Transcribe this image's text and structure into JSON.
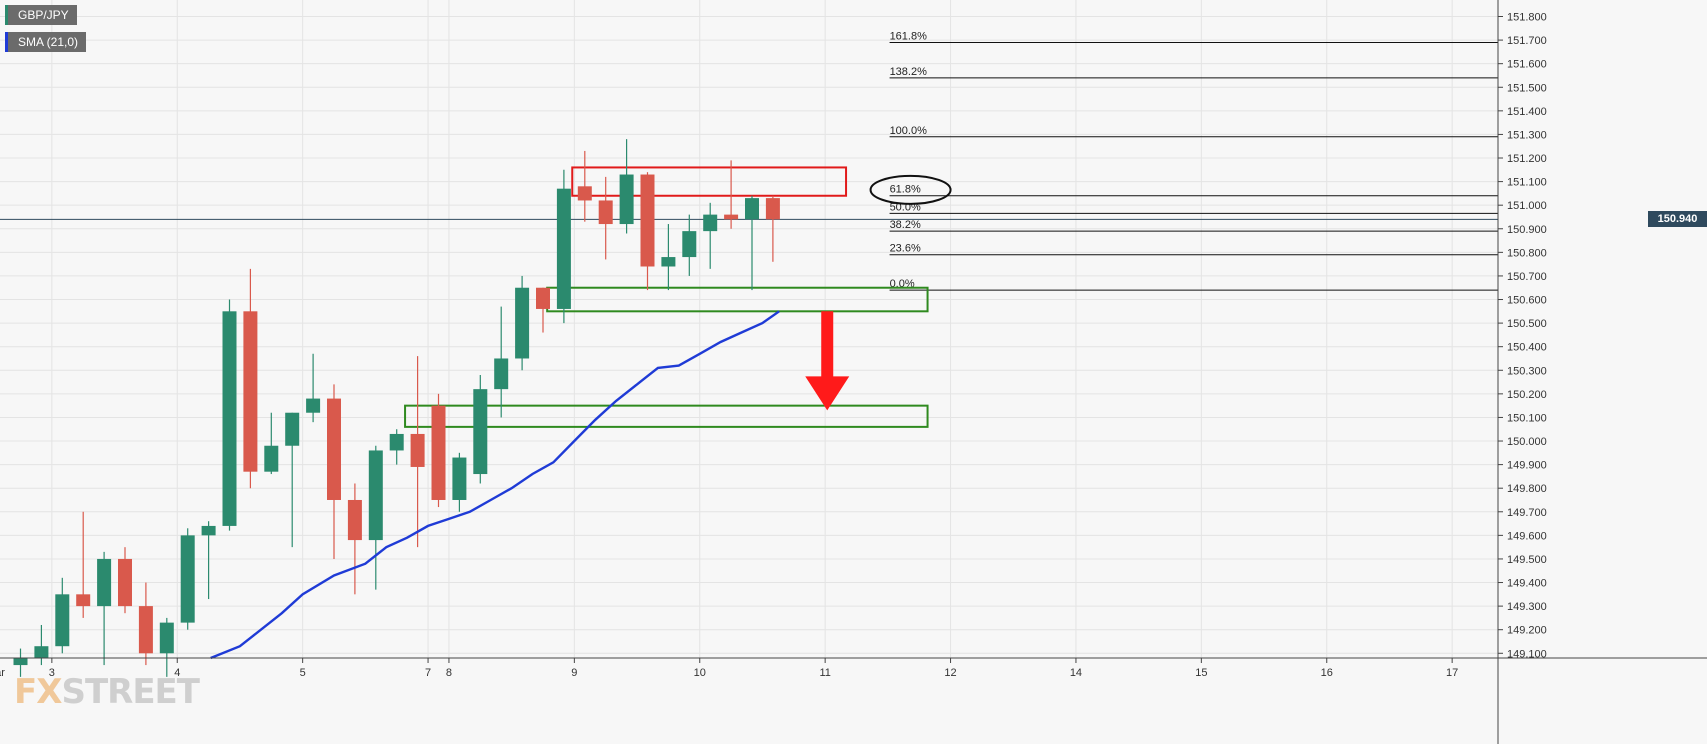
{
  "chart_data": {
    "type": "candlestick",
    "symbol": "GBP/JPY",
    "indicator": {
      "label": "SMA (21,0)",
      "color": "#1f3bd6"
    },
    "current_price": "150.940",
    "y_range": [
      149.08,
      151.87
    ],
    "y_ticks": [
      "151.800",
      "151.700",
      "151.600",
      "151.500",
      "151.400",
      "151.300",
      "151.200",
      "151.100",
      "151.000",
      "150.900",
      "150.800",
      "150.700",
      "150.600",
      "150.500",
      "150.400",
      "150.300",
      "150.200",
      "150.100",
      "150.000",
      "149.900",
      "149.800",
      "149.700",
      "149.600",
      "149.500",
      "149.400",
      "149.300",
      "149.200",
      "149.100"
    ],
    "x_labels": [
      {
        "label": "Mar",
        "bar": -1.2
      },
      {
        "label": "3",
        "bar": 1.5
      },
      {
        "label": "4",
        "bar": 7.5
      },
      {
        "label": "5",
        "bar": 13.5
      },
      {
        "label": "7",
        "bar": 19.5
      },
      {
        "label": "8",
        "bar": 20.5
      },
      {
        "label": "9",
        "bar": 26.5
      },
      {
        "label": "10",
        "bar": 32.5
      },
      {
        "label": "11",
        "bar": 38.5
      },
      {
        "label": "12",
        "bar": 44.5
      },
      {
        "label": "14",
        "bar": 50.5
      },
      {
        "label": "15",
        "bar": 56.5
      },
      {
        "label": "16",
        "bar": 62.5
      },
      {
        "label": "17",
        "bar": 68.5
      }
    ],
    "candles": [
      {
        "o": 149.05,
        "h": 149.12,
        "l": 149.0,
        "c": 149.08
      },
      {
        "o": 149.08,
        "h": 149.22,
        "l": 149.05,
        "c": 149.13
      },
      {
        "o": 149.13,
        "h": 149.42,
        "l": 149.1,
        "c": 149.35
      },
      {
        "o": 149.35,
        "h": 149.7,
        "l": 149.25,
        "c": 149.3
      },
      {
        "o": 149.3,
        "h": 149.53,
        "l": 149.05,
        "c": 149.5
      },
      {
        "o": 149.5,
        "h": 149.55,
        "l": 149.27,
        "c": 149.3
      },
      {
        "o": 149.3,
        "h": 149.4,
        "l": 149.05,
        "c": 149.1
      },
      {
        "o": 149.1,
        "h": 149.25,
        "l": 149.0,
        "c": 149.23
      },
      {
        "o": 149.23,
        "h": 149.63,
        "l": 149.2,
        "c": 149.6
      },
      {
        "o": 149.6,
        "h": 149.66,
        "l": 149.33,
        "c": 149.64
      },
      {
        "o": 149.64,
        "h": 150.6,
        "l": 149.62,
        "c": 150.55
      },
      {
        "o": 150.55,
        "h": 150.73,
        "l": 149.8,
        "c": 149.87
      },
      {
        "o": 149.87,
        "h": 150.12,
        "l": 149.86,
        "c": 149.98
      },
      {
        "o": 149.98,
        "h": 150.12,
        "l": 149.55,
        "c": 150.12
      },
      {
        "o": 150.12,
        "h": 150.37,
        "l": 150.08,
        "c": 150.18
      },
      {
        "o": 150.18,
        "h": 150.24,
        "l": 149.5,
        "c": 149.75
      },
      {
        "o": 149.75,
        "h": 149.82,
        "l": 149.35,
        "c": 149.58
      },
      {
        "o": 149.58,
        "h": 149.98,
        "l": 149.37,
        "c": 149.96
      },
      {
        "o": 149.96,
        "h": 150.05,
        "l": 149.9,
        "c": 150.03
      },
      {
        "o": 150.03,
        "h": 150.36,
        "l": 149.55,
        "c": 149.89
      },
      {
        "o": 150.15,
        "h": 150.2,
        "l": 149.72,
        "c": 149.75
      },
      {
        "o": 149.75,
        "h": 149.95,
        "l": 149.7,
        "c": 149.93
      },
      {
        "o": 149.86,
        "h": 150.28,
        "l": 149.82,
        "c": 150.22
      },
      {
        "o": 150.22,
        "h": 150.57,
        "l": 150.1,
        "c": 150.35
      },
      {
        "o": 150.35,
        "h": 150.7,
        "l": 150.3,
        "c": 150.65
      },
      {
        "o": 150.65,
        "h": 150.65,
        "l": 150.46,
        "c": 150.56
      },
      {
        "o": 150.56,
        "h": 151.15,
        "l": 150.5,
        "c": 151.07
      },
      {
        "o": 151.08,
        "h": 151.23,
        "l": 150.93,
        "c": 151.02
      },
      {
        "o": 151.02,
        "h": 151.12,
        "l": 150.77,
        "c": 150.92
      },
      {
        "o": 150.92,
        "h": 151.28,
        "l": 150.88,
        "c": 151.13
      },
      {
        "o": 151.13,
        "h": 151.14,
        "l": 150.64,
        "c": 150.74
      },
      {
        "o": 150.74,
        "h": 150.92,
        "l": 150.64,
        "c": 150.78
      },
      {
        "o": 150.78,
        "h": 150.96,
        "l": 150.7,
        "c": 150.89
      },
      {
        "o": 150.89,
        "h": 151.01,
        "l": 150.73,
        "c": 150.96
      },
      {
        "o": 150.96,
        "h": 151.19,
        "l": 150.9,
        "c": 150.94
      },
      {
        "o": 150.94,
        "h": 151.04,
        "l": 150.64,
        "c": 151.03
      },
      {
        "o": 151.03,
        "h": 151.04,
        "l": 150.76,
        "c": 150.94
      }
    ],
    "sma": [
      [
        9.1,
        149.08
      ],
      [
        10.5,
        149.13
      ],
      [
        11.5,
        149.2
      ],
      [
        12.5,
        149.27
      ],
      [
        13.5,
        149.35
      ],
      [
        15,
        149.43
      ],
      [
        16.5,
        149.48
      ],
      [
        17.5,
        149.55
      ],
      [
        18.5,
        149.59
      ],
      [
        19.5,
        149.64
      ],
      [
        20.5,
        149.67
      ],
      [
        21.5,
        149.7
      ],
      [
        22.5,
        149.75
      ],
      [
        23.5,
        149.8
      ],
      [
        24.5,
        149.86
      ],
      [
        25.5,
        149.91
      ],
      [
        26.5,
        150.0
      ],
      [
        27.5,
        150.09
      ],
      [
        28.5,
        150.17
      ],
      [
        29.5,
        150.24
      ],
      [
        30.5,
        150.31
      ],
      [
        31.5,
        150.32
      ],
      [
        32.5,
        150.37
      ],
      [
        33.5,
        150.42
      ],
      [
        34.5,
        150.46
      ],
      [
        35.5,
        150.5
      ],
      [
        36.3,
        150.55
      ]
    ],
    "fibonacci": [
      {
        "label": "161.8%",
        "value": 151.69
      },
      {
        "label": "138.2%",
        "value": 151.54
      },
      {
        "label": "100.0%",
        "value": 151.29
      },
      {
        "label": "61.8%",
        "value": 151.04
      },
      {
        "label": "50.0%",
        "value": 150.965
      },
      {
        "label": "38.2%",
        "value": 150.89
      },
      {
        "label": "23.6%",
        "value": 150.79
      },
      {
        "label": "0.0%",
        "value": 150.64
      }
    ],
    "current_price_value": 150.94,
    "zones": [
      {
        "from_bar": 26.4,
        "to_bar": 39.5,
        "top": 151.16,
        "bottom": 151.04,
        "color": "#e11a1a"
      },
      {
        "from_bar": 25.2,
        "to_bar": 43.4,
        "top": 150.65,
        "bottom": 150.55,
        "color": "#2f8a1f"
      },
      {
        "from_bar": 18.4,
        "to_bar": 43.4,
        "top": 150.15,
        "bottom": 150.06,
        "color": "#2f8a1f"
      }
    ],
    "arrow": {
      "bar": 38.6,
      "from": 150.55,
      "to": 150.13,
      "color": "#ff1a1a"
    },
    "ellipse": {
      "bar": 42.3,
      "value": 151.065
    },
    "colors": {
      "up": "#2b8a6e",
      "down": "#d9594c",
      "grid": "#e4e4e4",
      "axis": "#444444"
    }
  },
  "watermark": {
    "part1": "FX",
    "part2": "STREET"
  }
}
